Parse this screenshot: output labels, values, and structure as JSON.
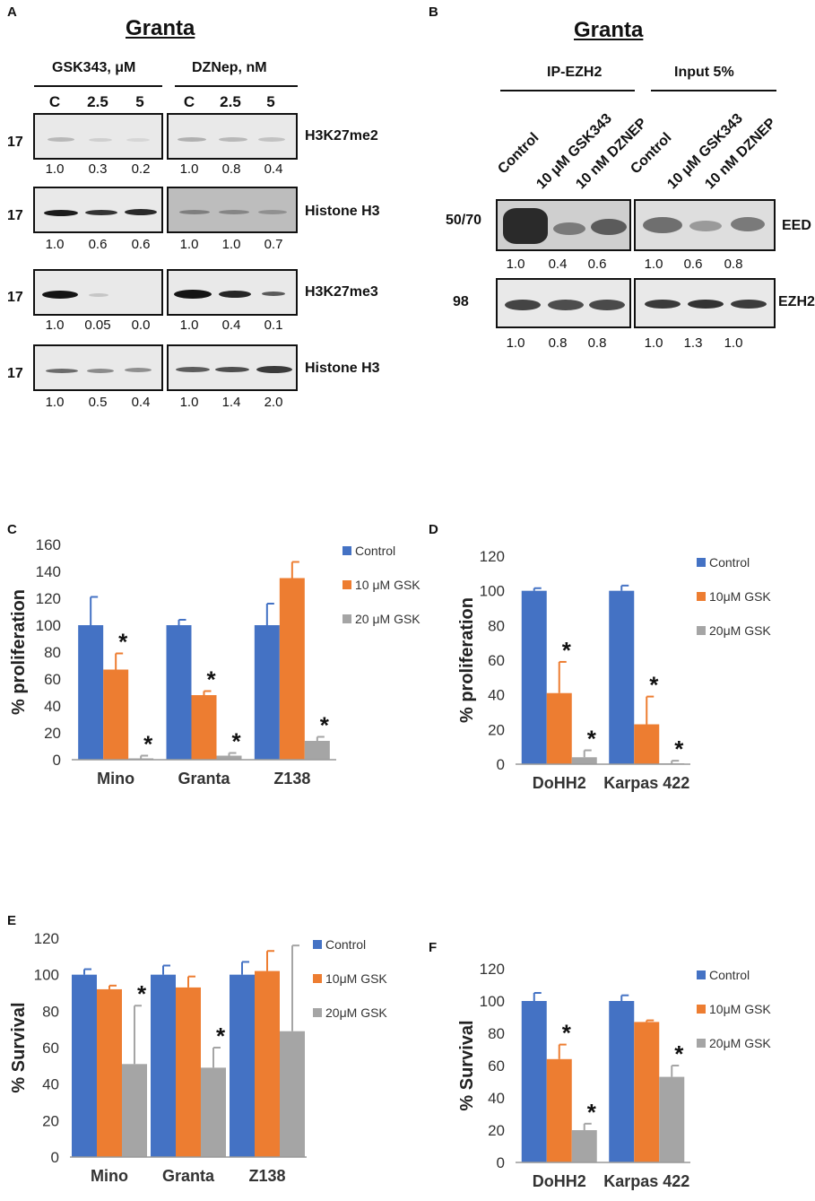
{
  "panelA": {
    "label": "A",
    "title": "Granta",
    "groups": [
      {
        "header": "GSK343, μM",
        "lanes": [
          "C",
          "2.5",
          "5"
        ]
      },
      {
        "header": "DZNep, nM",
        "lanes": [
          "C",
          "2.5",
          "5"
        ]
      }
    ],
    "rows": [
      {
        "mw": "17",
        "antibody": "H3K27me2",
        "left": [
          "1.0",
          "0.3",
          "0.2"
        ],
        "right": [
          "1.0",
          "0.8",
          "0.4"
        ]
      },
      {
        "mw": "17",
        "antibody": "Histone H3",
        "left": [
          "1.0",
          "0.6",
          "0.6"
        ],
        "right": [
          "1.0",
          "1.0",
          "0.7"
        ]
      },
      {
        "mw": "17",
        "antibody": "H3K27me3",
        "left": [
          "1.0",
          "0.05",
          "0.0"
        ],
        "right": [
          "1.0",
          "0.4",
          "0.1"
        ]
      },
      {
        "mw": "17",
        "antibody": "Histone H3",
        "left": [
          "1.0",
          "0.5",
          "0.4"
        ],
        "right": [
          "1.0",
          "1.4",
          "2.0"
        ]
      }
    ]
  },
  "panelB": {
    "label": "B",
    "title": "Granta",
    "groups": [
      {
        "header": "IP-EZH2",
        "lanes": [
          "Control",
          "10 μM GSK343",
          "10 nM DZNEP"
        ]
      },
      {
        "header": "Input 5%",
        "lanes": [
          "Control",
          "10 μM GSK343",
          "10 nM DZNEP"
        ]
      }
    ],
    "rows": [
      {
        "mw": "50/70",
        "antibody": "EED",
        "left": [
          "1.0",
          "0.4",
          "0.6"
        ],
        "right": [
          "1.0",
          "0.6",
          "0.8"
        ]
      },
      {
        "mw": "98",
        "antibody": "EZH2",
        "left": [
          "1.0",
          "0.8",
          "0.8"
        ],
        "right": [
          "1.0",
          "1.3",
          "1.0"
        ]
      }
    ]
  },
  "colors": {
    "control": "#4472C4",
    "gsk10": "#ED7D31",
    "gsk20": "#A5A5A5"
  },
  "chart_data": [
    {
      "panel": "C",
      "type": "bar",
      "ylabel": "% proliferation",
      "ylim": [
        0,
        160
      ],
      "yticks": [
        0,
        20,
        40,
        60,
        80,
        100,
        120,
        140,
        160
      ],
      "categories": [
        "Mino",
        "Granta",
        "Z138"
      ],
      "series": [
        {
          "name": "Control",
          "values": [
            100,
            100,
            100
          ],
          "errors": [
            21,
            4,
            16
          ]
        },
        {
          "name": "10 μM GSK",
          "values": [
            67,
            48,
            135
          ],
          "errors": [
            12,
            3,
            12
          ]
        },
        {
          "name": "20 μM GSK",
          "values": [
            1,
            3,
            14
          ],
          "errors": [
            2,
            2,
            3
          ]
        }
      ],
      "significance": [
        [
          false,
          true,
          true
        ],
        [
          false,
          true,
          true
        ],
        [
          false,
          false,
          true
        ]
      ],
      "marker": "*"
    },
    {
      "panel": "D",
      "type": "bar",
      "ylabel": "% proliferation",
      "ylim": [
        0,
        120
      ],
      "yticks": [
        0,
        20,
        40,
        60,
        80,
        100,
        120
      ],
      "categories": [
        "DoHH2",
        "Karpas 422"
      ],
      "series": [
        {
          "name": "Control",
          "values": [
            100,
            100
          ],
          "errors": [
            1.5,
            3
          ]
        },
        {
          "name": "10μM GSK",
          "values": [
            41,
            23
          ],
          "errors": [
            18,
            16
          ]
        },
        {
          "name": "20μM GSK",
          "values": [
            4,
            0.5
          ],
          "errors": [
            4,
            1.5
          ]
        }
      ],
      "significance": [
        [
          false,
          true,
          true
        ],
        [
          false,
          true,
          true
        ]
      ],
      "marker": "*"
    },
    {
      "panel": "E",
      "type": "bar",
      "ylabel": "% Survival",
      "ylim": [
        0,
        120
      ],
      "yticks": [
        0,
        20,
        40,
        60,
        80,
        100,
        120
      ],
      "categories": [
        "Mino",
        "Granta",
        "Z138"
      ],
      "series": [
        {
          "name": "Control",
          "values": [
            100,
            100,
            100
          ],
          "errors": [
            3,
            5,
            7
          ]
        },
        {
          "name": "10μM GSK",
          "values": [
            92,
            93,
            102
          ],
          "errors": [
            2,
            6,
            11
          ]
        },
        {
          "name": "20μM GSK",
          "values": [
            51,
            49,
            69
          ],
          "errors": [
            32,
            11,
            47
          ]
        }
      ],
      "significance": [
        [
          false,
          false,
          true
        ],
        [
          false,
          false,
          true
        ],
        [
          false,
          false,
          false
        ]
      ],
      "marker": "*"
    },
    {
      "panel": "F",
      "type": "bar",
      "ylabel": "% Survival",
      "ylim": [
        0,
        120
      ],
      "yticks": [
        0,
        20,
        40,
        60,
        80,
        100,
        120
      ],
      "categories": [
        "DoHH2",
        "Karpas 422"
      ],
      "series": [
        {
          "name": "Control",
          "values": [
            100,
            100
          ],
          "errors": [
            5,
            3.5
          ]
        },
        {
          "name": "10μM GSK",
          "values": [
            64,
            87
          ],
          "errors": [
            9,
            1
          ]
        },
        {
          "name": "20μM GSK",
          "values": [
            20,
            53
          ],
          "errors": [
            4,
            7
          ]
        }
      ],
      "significance": [
        [
          false,
          true,
          true
        ],
        [
          false,
          false,
          true
        ]
      ],
      "marker": "*"
    }
  ]
}
